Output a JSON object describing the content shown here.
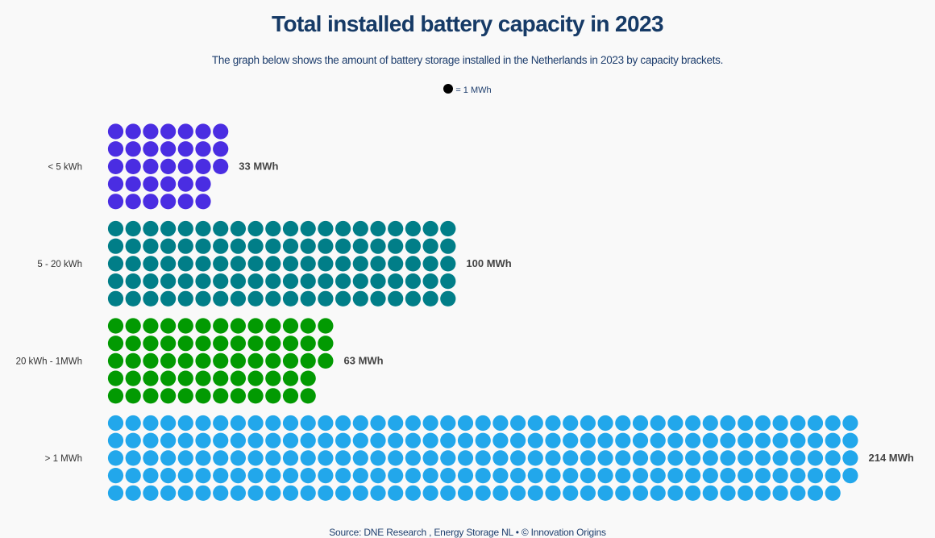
{
  "chart_data": {
    "type": "waffle",
    "title": "Total installed battery capacity in 2023",
    "subtitle": "The graph below shows the amount of battery storage installed in the Netherlands in 2023 by capacity brackets.",
    "legend": "= 1 MWh",
    "unit_per_dot_mwh": 1,
    "rows_per_group": 5,
    "categories": [
      "< 5 kWh",
      "5 - 20 kWh",
      "20 kWh - 1MWh",
      "> 1 MWh"
    ],
    "values": [
      33,
      100,
      63,
      214
    ],
    "value_labels": [
      "33 MWh",
      "100 MWh",
      "63 MWh",
      "214 MWh"
    ],
    "colors": [
      "#4a2de2",
      "#017e88",
      "#029a02",
      "#22a7eb"
    ],
    "source": "Source: DNE Research , Energy Storage NL • © Innovation Origins"
  }
}
